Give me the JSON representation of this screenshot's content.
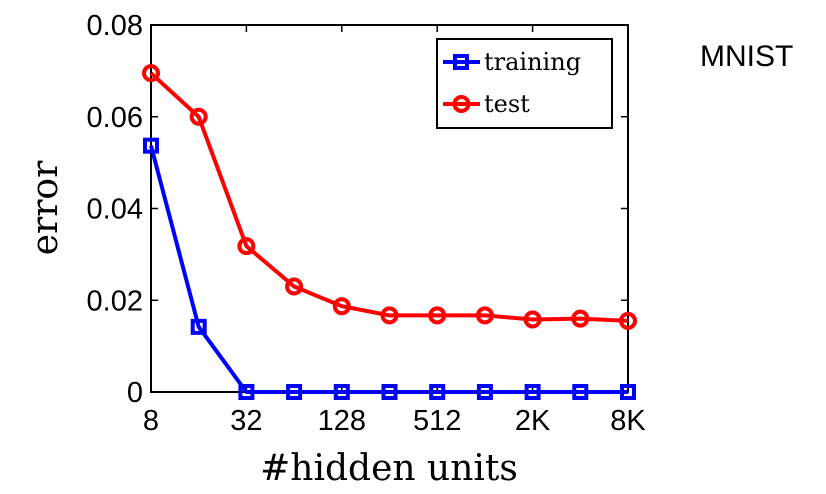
{
  "side_label": "MNIST",
  "chart_data": {
    "type": "line",
    "xlabel": "#hidden units",
    "ylabel": "error",
    "x": [
      8,
      16,
      32,
      64,
      128,
      256,
      512,
      1024,
      2048,
      4096,
      8192
    ],
    "x_tick_values": [
      8,
      32,
      128,
      512,
      2048,
      8192
    ],
    "x_tick_labels": [
      "8",
      "32",
      "128",
      "512",
      "2K",
      "8K"
    ],
    "x_scale": "log2",
    "xlim": [
      8,
      8192
    ],
    "ylim": [
      0,
      0.08
    ],
    "y_ticks": [
      0,
      0.02,
      0.04,
      0.06,
      0.08
    ],
    "y_tick_labels": [
      "0",
      "0.02",
      "0.04",
      "0.06",
      "0.08"
    ],
    "grid": false,
    "legend_position": "top-right",
    "series": [
      {
        "name": "training",
        "color": "#0000ff",
        "marker": "square",
        "values": [
          0.0537,
          0.0142,
          0.0,
          0.0,
          0.0,
          0.0,
          0.0,
          0.0,
          0.0,
          0.0,
          0.0
        ]
      },
      {
        "name": "test",
        "color": "#ff0000",
        "marker": "circle",
        "values": [
          0.0695,
          0.06,
          0.0318,
          0.023,
          0.0187,
          0.0167,
          0.0167,
          0.0167,
          0.0158,
          0.016,
          0.0155
        ]
      }
    ]
  }
}
